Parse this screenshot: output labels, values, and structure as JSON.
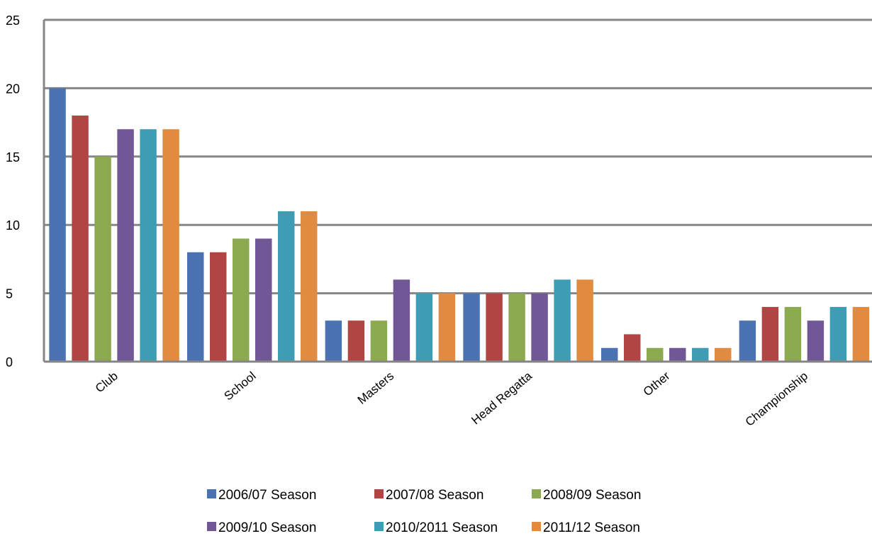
{
  "chart_data": {
    "type": "bar",
    "categories": [
      "Club",
      "School",
      "Masters",
      "Head Regatta",
      "Other",
      "Championship"
    ],
    "series": [
      {
        "name": "2006/07 Season",
        "color": "#4a72b0",
        "values": [
          20,
          8,
          3,
          5,
          1,
          3
        ]
      },
      {
        "name": "2007/08 Season",
        "color": "#b04543",
        "values": [
          18,
          8,
          3,
          5,
          2,
          4
        ]
      },
      {
        "name": "2008/09 Season",
        "color": "#8ba94f",
        "values": [
          15,
          9,
          3,
          5,
          1,
          4
        ]
      },
      {
        "name": "2009/10 Season",
        "color": "#725797",
        "values": [
          17,
          9,
          6,
          5,
          1,
          3
        ]
      },
      {
        "name": "2010/2011 Season",
        "color": "#3e9db4",
        "values": [
          17,
          11,
          5,
          6,
          1,
          4
        ]
      },
      {
        "name": "2011/12 Season",
        "color": "#e08b40",
        "values": [
          17,
          11,
          5,
          6,
          1,
          4
        ]
      }
    ],
    "y_ticks": [
      "0",
      "5",
      "10",
      "15",
      "20",
      "25"
    ],
    "ylim": [
      0,
      25
    ],
    "grid": true,
    "legend_position": "bottom"
  }
}
